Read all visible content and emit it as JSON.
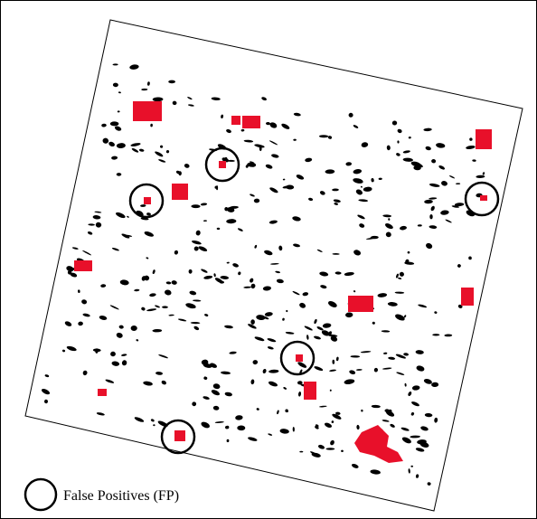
{
  "legend": {
    "label": "False Positives (FP)"
  }
}
